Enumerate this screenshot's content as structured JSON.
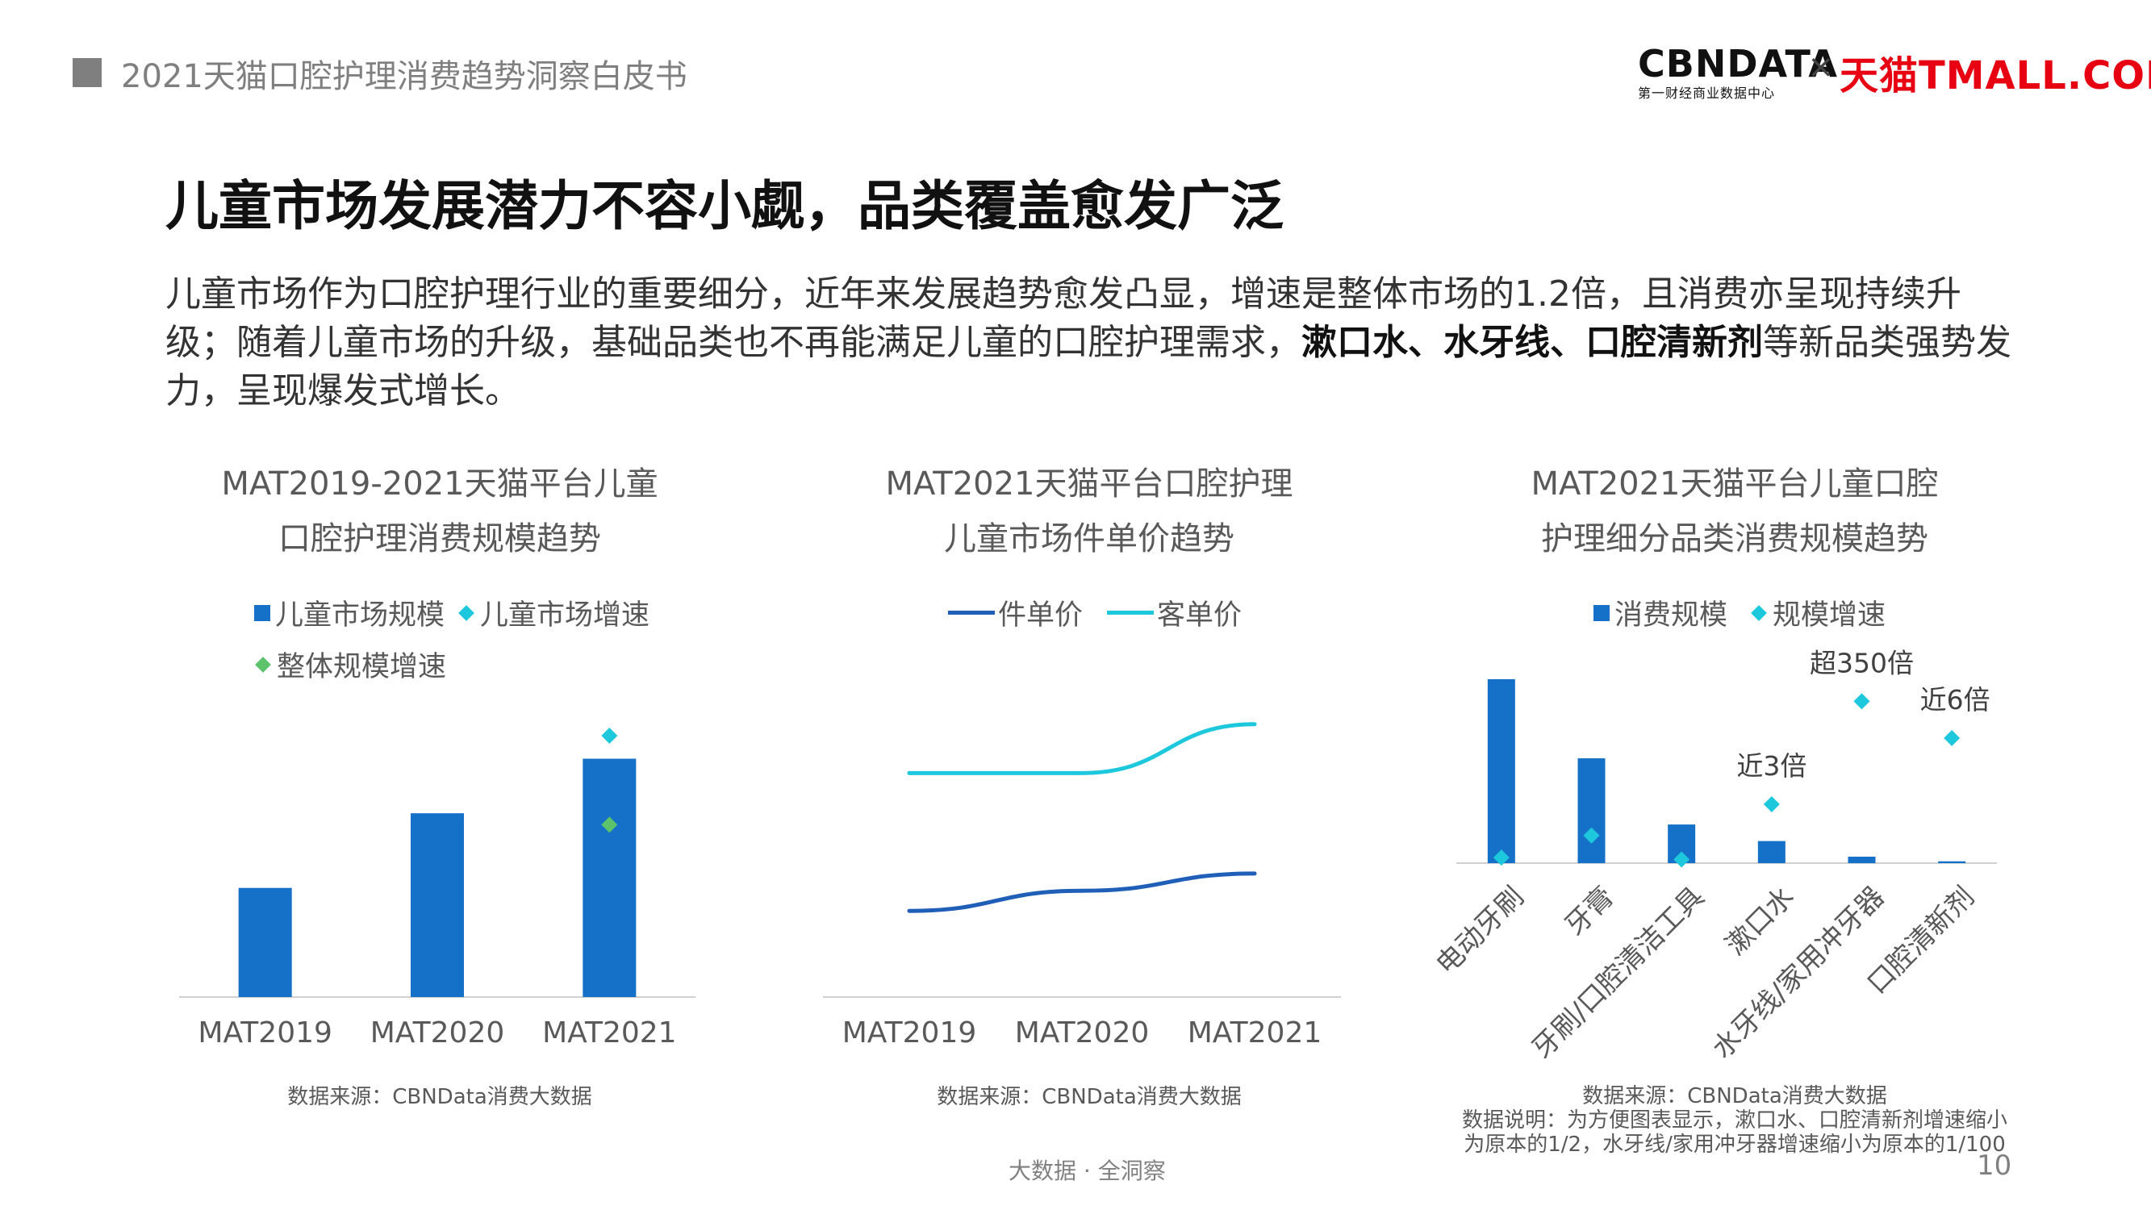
{
  "header": {
    "doc_title": "2021天猫口腔护理消费趋势洞察白皮书",
    "logo_cbn": "CBNDATA",
    "logo_sub": "第一财经商业数据中心",
    "logo_times": "×",
    "logo_tmall": "天猫TMALL.COM"
  },
  "headline": "儿童市场发展潜力不容小觑，品类覆盖愈发广泛",
  "body": {
    "part1": "儿童市场作为口腔护理行业的重要细分，近年来发展趋势愈发凸显，增速是整体市场的1.2倍，且消费亦呈现持续升级；随着儿童市场的升级，基础品类也不再能满足儿童的口腔护理需求，",
    "bold": "漱口水、水牙线、口腔清新剂",
    "part2": "等新品类强势发力，呈现爆发式增长。"
  },
  "colors": {
    "blue": "#1570c8",
    "cyan": "#1ec8dc",
    "green": "#5cc36b",
    "dark_blue": "#1f5fb8",
    "axis": "#d0d0d0"
  },
  "chart_data": [
    {
      "type": "bar",
      "title_line1": "MAT2019-2021天猫平台儿童",
      "title_line2": "口腔护理消费规模趋势",
      "categories": [
        "MAT2019",
        "MAT2020",
        "MAT2021"
      ],
      "series": [
        {
          "name": "儿童市场规模",
          "kind": "bar",
          "values": [
            38,
            64,
            83
          ]
        },
        {
          "name": "儿童市场增速",
          "kind": "marker",
          "values": [
            null,
            null,
            91
          ]
        },
        {
          "name": "整体规模增速",
          "kind": "marker",
          "values": [
            null,
            null,
            60
          ]
        }
      ],
      "ylim": [
        0,
        100
      ],
      "legend": "top",
      "source": "数据来源：CBNData消费大数据"
    },
    {
      "type": "line",
      "title_line1": "MAT2021天猫平台口腔护理",
      "title_line2": "儿童市场件单价趋势",
      "categories": [
        "MAT2019",
        "MAT2020",
        "MAT2021"
      ],
      "series": [
        {
          "name": "件单价",
          "values": [
            30,
            37,
            43
          ]
        },
        {
          "name": "客单价",
          "values": [
            78,
            78,
            95
          ]
        }
      ],
      "ylim": [
        0,
        100
      ],
      "legend": "top",
      "source": "数据来源：CBNData消费大数据"
    },
    {
      "type": "bar",
      "title_line1": "MAT2021天猫平台儿童口腔",
      "title_line2": "护理细分品类消费规模趋势",
      "categories": [
        "电动牙刷",
        "牙膏",
        "牙刷/口腔清洁工具",
        "漱口水",
        "水牙线/家用冲牙器",
        "口腔清新剂"
      ],
      "series": [
        {
          "name": "消费规模",
          "kind": "bar",
          "values": [
            100,
            57,
            21,
            12,
            3.5,
            1
          ]
        },
        {
          "name": "规模增速",
          "kind": "marker",
          "values": [
            3,
            15,
            2,
            32,
            88,
            68
          ]
        }
      ],
      "annotations": [
        "",
        "",
        "",
        "近3倍",
        "超350倍",
        "近6倍"
      ],
      "ylim": [
        0,
        100
      ],
      "legend": "top",
      "source": "数据来源：CBNData消费大数据",
      "note_line1": "数据说明：为方便图表显示，漱口水、口腔清新剂增速缩小",
      "note_line2": "为原本的1/2，水牙线/家用冲牙器增速缩小为原本的1/100"
    }
  ],
  "footer": {
    "tagline": "大数据 · 全洞察",
    "page": "10"
  }
}
